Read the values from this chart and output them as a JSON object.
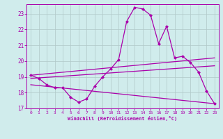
{
  "x": [
    0,
    1,
    2,
    3,
    4,
    5,
    6,
    7,
    8,
    9,
    10,
    11,
    12,
    13,
    14,
    15,
    16,
    17,
    18,
    19,
    20,
    21,
    22,
    23
  ],
  "main_line": [
    19.1,
    18.9,
    18.5,
    18.3,
    18.3,
    17.7,
    17.4,
    17.6,
    18.4,
    19.0,
    19.5,
    20.1,
    22.5,
    23.4,
    23.3,
    22.9,
    21.1,
    22.2,
    20.2,
    20.3,
    19.9,
    19.3,
    18.1,
    17.3
  ],
  "trend1_x": [
    0,
    23
  ],
  "trend1_y": [
    19.1,
    20.2
  ],
  "trend2_x": [
    0,
    23
  ],
  "trend2_y": [
    18.9,
    19.7
  ],
  "trend3_x": [
    0,
    23
  ],
  "trend3_y": [
    18.5,
    17.3
  ],
  "color": "#aa00aa",
  "bg_color": "#d0ecec",
  "grid_color": "#b0c8c8",
  "xlabel": "Windchill (Refroidissement éolien,°C)",
  "xlim": [
    -0.5,
    23.5
  ],
  "ylim": [
    17.0,
    23.6
  ],
  "yticks": [
    17,
    18,
    19,
    20,
    21,
    22,
    23
  ],
  "xticks": [
    0,
    1,
    2,
    3,
    4,
    5,
    6,
    7,
    8,
    9,
    10,
    11,
    12,
    13,
    14,
    15,
    16,
    17,
    18,
    19,
    20,
    21,
    22,
    23
  ]
}
